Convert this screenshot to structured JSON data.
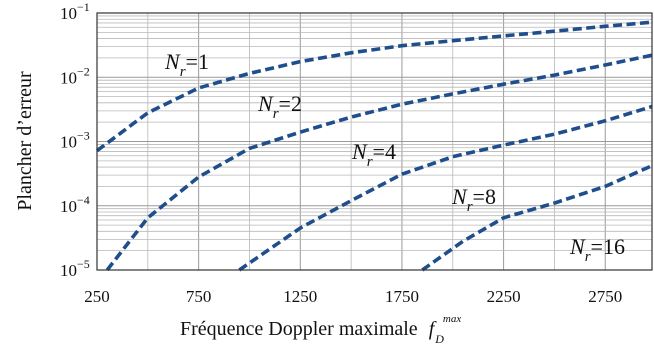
{
  "chart_data": {
    "type": "line",
    "xlabel": "Fréquence Doppler maximale",
    "xlabel_symbol": {
      "base": "f",
      "sub": "D",
      "sup": "max"
    },
    "ylabel": "Plancher d’erreur",
    "xlim": [
      250,
      2980
    ],
    "ylim": [
      1e-05,
      0.1
    ],
    "yscale": "log",
    "grid": true,
    "x_ticks": [
      250,
      750,
      1250,
      1750,
      2250,
      2750
    ],
    "y_ticks": [
      {
        "value": 0.1,
        "base": "10",
        "exp": "−1"
      },
      {
        "value": 0.01,
        "base": "10",
        "exp": "−2"
      },
      {
        "value": 0.001,
        "base": "10",
        "exp": "−3"
      },
      {
        "value": 0.0001,
        "base": "10",
        "exp": "−4"
      },
      {
        "value": 1e-05,
        "base": "10",
        "exp": "−5"
      }
    ],
    "series": [
      {
        "label": "Nr=1",
        "label_base": "N",
        "label_sub": "r",
        "label_value": "=1",
        "x": [
          250,
          500,
          750,
          1000,
          1250,
          1500,
          1750,
          2000,
          2250,
          2500,
          2750,
          2980
        ],
        "y": [
          0.00072,
          0.0028,
          0.0068,
          0.0115,
          0.0175,
          0.024,
          0.031,
          0.037,
          0.044,
          0.052,
          0.062,
          0.072
        ]
      },
      {
        "label": "Nr=2",
        "label_base": "N",
        "label_sub": "r",
        "label_value": "=2",
        "x": [
          300,
          500,
          750,
          1000,
          1250,
          1500,
          1750,
          2000,
          2250,
          2500,
          2750,
          2980
        ],
        "y": [
          1e-05,
          6.5e-05,
          0.00028,
          0.00078,
          0.0014,
          0.0024,
          0.0038,
          0.0055,
          0.0078,
          0.0108,
          0.0155,
          0.022
        ]
      },
      {
        "label": "Nr=4",
        "label_base": "N",
        "label_sub": "r",
        "label_value": "=4",
        "x": [
          950,
          1250,
          1500,
          1750,
          2000,
          2250,
          2500,
          2750,
          2980
        ],
        "y": [
          1e-05,
          4.5e-05,
          0.00012,
          0.00031,
          0.00058,
          0.00088,
          0.0013,
          0.0021,
          0.0035
        ]
      },
      {
        "label": "Nr=8",
        "label_base": "N",
        "label_sub": "r",
        "label_value": "=8",
        "x": [
          1850,
          2050,
          2250,
          2500,
          2750,
          2980
        ],
        "y": [
          1e-05,
          2.8e-05,
          6.5e-05,
          0.00011,
          0.0002,
          0.00042
        ]
      }
    ],
    "extra_labels": [
      {
        "label": "Nr=16",
        "label_base": "N",
        "label_sub": "r",
        "label_value": "=16"
      }
    ]
  }
}
